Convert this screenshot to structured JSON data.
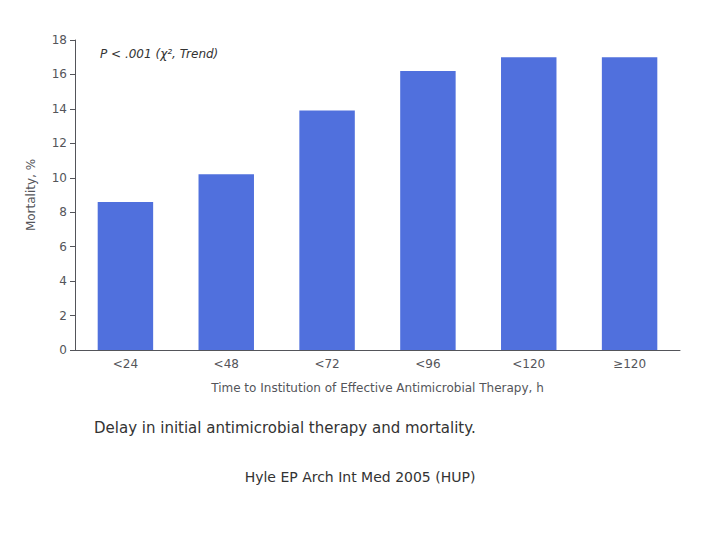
{
  "chart_data": {
    "type": "bar",
    "categories": [
      "<24",
      "<48",
      "<72",
      "<96",
      "<120",
      "≥120"
    ],
    "values": [
      8.6,
      10.2,
      13.9,
      16.2,
      17.0,
      17.0
    ],
    "ylabel": "Mortality, %",
    "xlabel": "Time to Institution of Effective Antimicrobial Therapy, h",
    "ylim": [
      0,
      18
    ],
    "yticks": [
      0,
      2,
      4,
      6,
      8,
      10,
      12,
      14,
      16,
      18
    ],
    "annotation": "P < .001 (χ², Trend)",
    "caption": "Delay in initial antimicrobial therapy and mortality.",
    "source": "Hyle EP Arch Int Med 2005 (HUP)",
    "grid": false
  }
}
